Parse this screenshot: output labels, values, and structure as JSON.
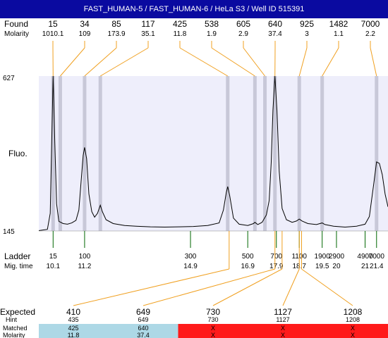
{
  "header": {
    "title": "FAST_HUMAN-5 / FAST_HUMAN-6 / HeLa S3 / Well ID 515391"
  },
  "labels": {
    "found": "Found",
    "molarity": "Molarity",
    "fluo": "Fluo.",
    "ladder": "Ladder",
    "mig_time": "Mig. time",
    "expected": "Expected",
    "hint": "Hint",
    "matched": "Matched",
    "molarity_row": "Molarity"
  },
  "colors": {
    "title_bg": "#0a0aa0",
    "plot_bg": "#eeeefb",
    "peak_band": "#c8c8d8",
    "connector": "#f0a020",
    "ladder_tick": "#006600",
    "matched_bg": "#add8e6",
    "unmatched_bg": "#ff1a1a",
    "trace": "#000000"
  },
  "chart_data": {
    "type": "line",
    "ylabel": "Fluo.",
    "y_ticks": [
      "627",
      "145"
    ],
    "ylim": [
      145,
      627
    ],
    "xlim": [
      9.6,
      21.8
    ],
    "found": [
      {
        "size": "15",
        "molarity": "1010.1",
        "time": 10.1
      },
      {
        "size": "34",
        "molarity": "109",
        "time": 10.35
      },
      {
        "size": "85",
        "molarity": "173.9",
        "time": 11.2
      },
      {
        "size": "117",
        "molarity": "35.1",
        "time": 11.75
      },
      {
        "size": "425",
        "molarity": "11.8",
        "time": 16.2
      },
      {
        "size": "538",
        "molarity": "1.9",
        "time": 17.15
      },
      {
        "size": "605",
        "molarity": "2.9",
        "time": 17.5
      },
      {
        "size": "640",
        "molarity": "37.4",
        "time": 17.85
      },
      {
        "size": "925",
        "molarity": "3",
        "time": 18.7
      },
      {
        "size": "1482",
        "molarity": "1.1",
        "time": 19.5
      },
      {
        "size": "7000",
        "molarity": "2.2",
        "time": 21.4
      }
    ],
    "ladder": [
      {
        "size": "15",
        "time": 10.1
      },
      {
        "size": "100",
        "time": 11.2
      },
      {
        "size": "300",
        "time": 14.9
      },
      {
        "size": "500",
        "time": 16.9
      },
      {
        "size": "700",
        "time": 17.9
      },
      {
        "size": "1100",
        "time": 18.7
      },
      {
        "size": "1900",
        "time": 19.5
      },
      {
        "size": "2900",
        "time": 20
      },
      {
        "size": "4900",
        "time": 21
      },
      {
        "size": "7000",
        "time": 21.4
      }
    ],
    "trace": [
      [
        9.6,
        146
      ],
      [
        9.9,
        150
      ],
      [
        10.0,
        200
      ],
      [
        10.05,
        420
      ],
      [
        10.1,
        627
      ],
      [
        10.16,
        420
      ],
      [
        10.22,
        230
      ],
      [
        10.3,
        175
      ],
      [
        10.45,
        168
      ],
      [
        10.6,
        166
      ],
      [
        10.75,
        170
      ],
      [
        10.9,
        178
      ],
      [
        11.0,
        210
      ],
      [
        11.08,
        300
      ],
      [
        11.15,
        380
      ],
      [
        11.2,
        405
      ],
      [
        11.27,
        370
      ],
      [
        11.35,
        260
      ],
      [
        11.45,
        205
      ],
      [
        11.55,
        188
      ],
      [
        11.65,
        200
      ],
      [
        11.75,
        225
      ],
      [
        11.82,
        205
      ],
      [
        11.95,
        180
      ],
      [
        12.2,
        168
      ],
      [
        12.6,
        162
      ],
      [
        13.0,
        160
      ],
      [
        13.5,
        158
      ],
      [
        14.0,
        157
      ],
      [
        14.5,
        158
      ],
      [
        15.0,
        159
      ],
      [
        15.5,
        162
      ],
      [
        15.9,
        170
      ],
      [
        16.05,
        210
      ],
      [
        16.15,
        265
      ],
      [
        16.2,
        283
      ],
      [
        16.27,
        255
      ],
      [
        16.4,
        185
      ],
      [
        16.6,
        166
      ],
      [
        16.9,
        162
      ],
      [
        17.1,
        168
      ],
      [
        17.15,
        172
      ],
      [
        17.25,
        165
      ],
      [
        17.4,
        172
      ],
      [
        17.55,
        195
      ],
      [
        17.65,
        240
      ],
      [
        17.72,
        360
      ],
      [
        17.78,
        520
      ],
      [
        17.85,
        627
      ],
      [
        17.92,
        520
      ],
      [
        18.0,
        330
      ],
      [
        18.1,
        215
      ],
      [
        18.25,
        180
      ],
      [
        18.45,
        172
      ],
      [
        18.6,
        176
      ],
      [
        18.7,
        182
      ],
      [
        18.8,
        176
      ],
      [
        19.0,
        168
      ],
      [
        19.3,
        165
      ],
      [
        19.5,
        170
      ],
      [
        19.6,
        165
      ],
      [
        19.9,
        160
      ],
      [
        20.3,
        157
      ],
      [
        20.7,
        160
      ],
      [
        21.0,
        166
      ],
      [
        21.15,
        190
      ],
      [
        21.3,
        290
      ],
      [
        21.4,
        360
      ],
      [
        21.5,
        355
      ],
      [
        21.6,
        320
      ],
      [
        21.7,
        260
      ],
      [
        21.8,
        220
      ]
    ],
    "expected": [
      {
        "expected": "410",
        "hint": "435",
        "matched": "425",
        "molarity": "11.8",
        "time": 16.25
      },
      {
        "expected": "649",
        "hint": "649",
        "matched": "640",
        "molarity": "37.4",
        "time": 17.85
      },
      {
        "expected": "730",
        "hint": "730",
        "matched": "X",
        "molarity": "X",
        "time": 18.1
      },
      {
        "expected": "1127",
        "hint": "1127",
        "matched": "X",
        "molarity": "X",
        "time": 18.7
      },
      {
        "expected": "1208",
        "hint": "1208",
        "matched": "X",
        "molarity": "X",
        "time": 18.78
      }
    ]
  }
}
